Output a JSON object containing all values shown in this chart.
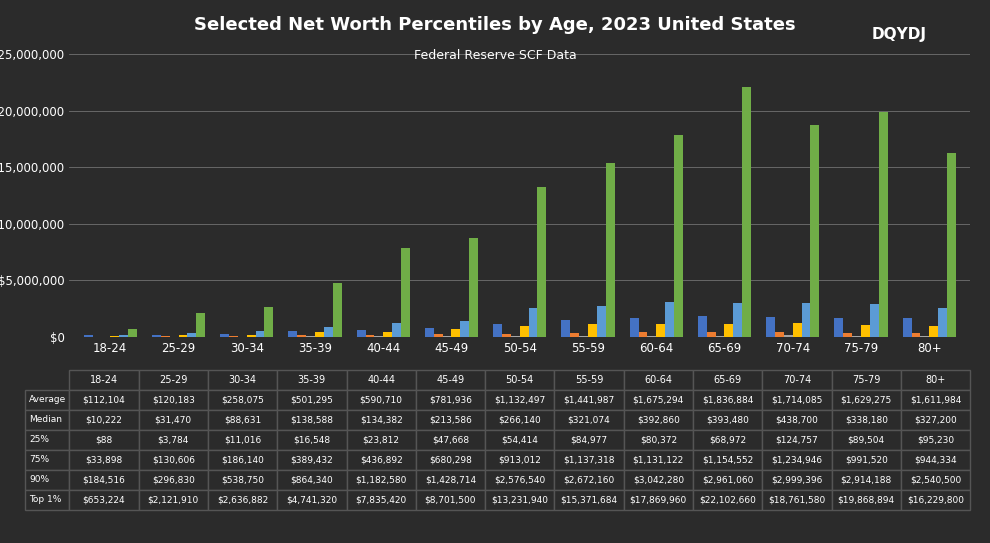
{
  "title": "Selected Net Worth Percentiles by Age, 2023 United States",
  "subtitle": "Federal Reserve SCF Data",
  "background_color": "#2b2b2b",
  "text_color": "#ffffff",
  "categories": [
    "18-24",
    "25-29",
    "30-34",
    "35-39",
    "40-44",
    "45-49",
    "50-54",
    "55-59",
    "60-64",
    "65-69",
    "70-74",
    "75-79",
    "80+"
  ],
  "series": {
    "Average": {
      "color": "#4472c4",
      "values": [
        112104,
        120183,
        258075,
        501295,
        590710,
        781936,
        1132497,
        1441987,
        1675294,
        1836884,
        1714085,
        1629275,
        1611984
      ]
    },
    "Median": {
      "color": "#ed7d31",
      "values": [
        10222,
        31470,
        88631,
        138588,
        134382,
        213586,
        266140,
        321074,
        392860,
        393480,
        438700,
        338180,
        327200
      ]
    },
    "25%": {
      "color": "#a5a5a5",
      "values": [
        88,
        3784,
        11016,
        16548,
        23812,
        47668,
        54414,
        84977,
        80372,
        68972,
        124757,
        89504,
        95230
      ]
    },
    "75%": {
      "color": "#ffc000",
      "values": [
        33898,
        130606,
        186140,
        389432,
        436892,
        680298,
        913012,
        1137318,
        1131122,
        1154552,
        1234946,
        991520,
        944334
      ]
    },
    "90%": {
      "color": "#5b9bd5",
      "values": [
        184516,
        296830,
        538750,
        864340,
        1182580,
        1428714,
        2576540,
        2672160,
        3042280,
        2961060,
        2999396,
        2914188,
        2540500
      ]
    },
    "Top 1%": {
      "color": "#70ad47",
      "values": [
        653224,
        2121910,
        2636882,
        4741320,
        7835420,
        8701500,
        13231940,
        15371684,
        17869960,
        22102660,
        18761580,
        19868894,
        16229800
      ]
    }
  },
  "ylim": [
    0,
    25000000
  ],
  "yticks": [
    0,
    5000000,
    10000000,
    15000000,
    20000000,
    25000000
  ],
  "grid_color": "#ffffff",
  "table_header_color": "#1a1a1a",
  "legend_labels": [
    "Average",
    "Median",
    "25%",
    "75%",
    "90%",
    "Top 1%"
  ]
}
